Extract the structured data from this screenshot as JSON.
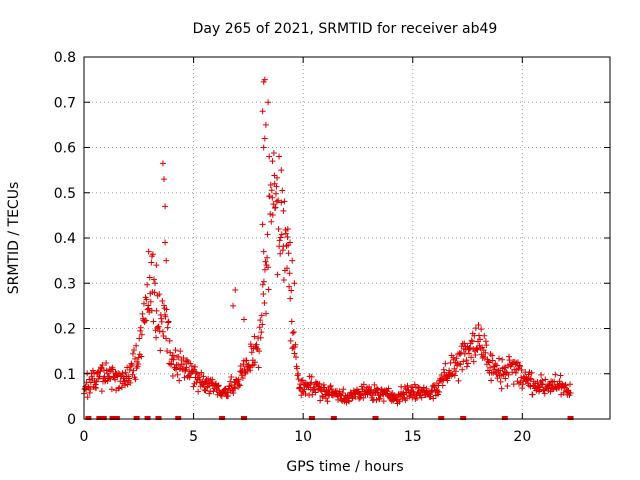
{
  "chart_data": {
    "type": "scatter",
    "title": "Day 265 of 2021, SRMTID for receiver ab49",
    "xlabel": "GPS time / hours",
    "ylabel": "SRMTID / TECUs",
    "xlim": [
      0,
      24
    ],
    "ylim": [
      0,
      0.8
    ],
    "xticks": [
      0,
      5,
      10,
      15,
      20
    ],
    "xtick_labels": [
      "0",
      "5",
      "10",
      "15",
      "20"
    ],
    "yticks": [
      0,
      0.1,
      0.2,
      0.3,
      0.4,
      0.5,
      0.6,
      0.7,
      0.8
    ],
    "ytick_labels": [
      "0",
      "0.1",
      "0.2",
      "0.3",
      "0.4",
      "0.5",
      "0.6",
      "0.7",
      "0.8"
    ],
    "grid": true,
    "marker": "+",
    "color": "#e00000",
    "profile": [
      [
        0.0,
        0.07
      ],
      [
        0.5,
        0.09
      ],
      [
        1.0,
        0.1
      ],
      [
        1.5,
        0.09
      ],
      [
        2.0,
        0.09
      ],
      [
        2.4,
        0.12
      ],
      [
        2.8,
        0.24
      ],
      [
        3.0,
        0.3
      ],
      [
        3.3,
        0.24
      ],
      [
        3.7,
        0.2
      ],
      [
        4.0,
        0.13
      ],
      [
        4.4,
        0.12
      ],
      [
        5.0,
        0.1
      ],
      [
        5.5,
        0.08
      ],
      [
        6.0,
        0.07
      ],
      [
        6.5,
        0.06
      ],
      [
        7.0,
        0.08
      ],
      [
        7.5,
        0.12
      ],
      [
        8.0,
        0.18
      ],
      [
        8.3,
        0.3
      ],
      [
        8.6,
        0.5
      ],
      [
        8.9,
        0.45
      ],
      [
        9.2,
        0.4
      ],
      [
        9.5,
        0.2
      ],
      [
        9.8,
        0.08
      ],
      [
        10.5,
        0.07
      ],
      [
        11.0,
        0.06
      ],
      [
        12.0,
        0.05
      ],
      [
        13.0,
        0.06
      ],
      [
        14.0,
        0.05
      ],
      [
        15.0,
        0.06
      ],
      [
        16.0,
        0.06
      ],
      [
        16.5,
        0.1
      ],
      [
        17.0,
        0.12
      ],
      [
        17.5,
        0.16
      ],
      [
        18.0,
        0.18
      ],
      [
        18.5,
        0.12
      ],
      [
        19.0,
        0.1
      ],
      [
        19.5,
        0.12
      ],
      [
        20.0,
        0.09
      ],
      [
        21.0,
        0.07
      ],
      [
        21.5,
        0.08
      ],
      [
        22.0,
        0.06
      ],
      [
        22.2,
        0.06
      ]
    ],
    "outliers": [
      [
        3.6,
        0.565
      ],
      [
        3.65,
        0.53
      ],
      [
        3.7,
        0.47
      ],
      [
        3.7,
        0.39
      ],
      [
        3.75,
        0.35
      ],
      [
        2.95,
        0.37
      ],
      [
        3.1,
        0.36
      ],
      [
        3.3,
        0.34
      ],
      [
        8.2,
        0.745
      ],
      [
        8.25,
        0.75
      ],
      [
        8.4,
        0.7
      ],
      [
        8.15,
        0.68
      ],
      [
        8.3,
        0.65
      ],
      [
        8.25,
        0.62
      ],
      [
        8.2,
        0.6
      ],
      [
        8.45,
        0.58
      ],
      [
        8.6,
        0.57
      ],
      [
        8.9,
        0.58
      ],
      [
        9.0,
        0.55
      ],
      [
        8.7,
        0.52
      ],
      [
        8.8,
        0.48
      ],
      [
        9.1,
        0.46
      ],
      [
        9.3,
        0.42
      ],
      [
        9.4,
        0.39
      ],
      [
        8.15,
        0.43
      ],
      [
        8.2,
        0.37
      ],
      [
        9.5,
        0.35
      ],
      [
        9.6,
        0.3
      ],
      [
        6.9,
        0.285
      ],
      [
        6.8,
        0.25
      ],
      [
        7.3,
        0.22
      ]
    ],
    "gap_markers_x": [
      0.2,
      0.7,
      0.9,
      1.3,
      1.5,
      2.4,
      2.9,
      3.4,
      4.3,
      6.3,
      7.3,
      10.4,
      11.4,
      13.3,
      16.3,
      17.3,
      19.2,
      22.2
    ]
  }
}
